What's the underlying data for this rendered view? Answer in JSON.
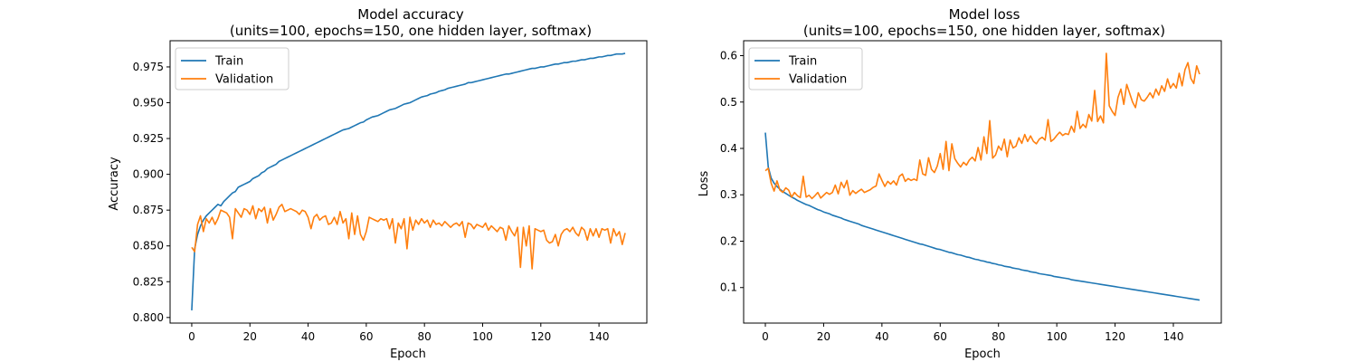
{
  "chart_data": [
    {
      "type": "line",
      "title": "Model accuracy",
      "subtitle": "(units=100, epochs=150, one hidden layer, softmax)",
      "xlabel": "Epoch",
      "ylabel": "Accuracy",
      "xlim": [
        -7.45,
        156.45
      ],
      "ylim": [
        0.7961,
        0.9933
      ],
      "xticks": [
        0,
        20,
        40,
        60,
        80,
        100,
        120,
        140
      ],
      "xtick_labels": [
        "0",
        "20",
        "40",
        "60",
        "80",
        "100",
        "120",
        "140"
      ],
      "yticks": [
        0.8,
        0.825,
        0.85,
        0.875,
        0.9,
        0.925,
        0.95,
        0.975
      ],
      "ytick_labels": [
        "0.800",
        "0.825",
        "0.850",
        "0.875",
        "0.900",
        "0.925",
        "0.950",
        "0.975"
      ],
      "legend": "top-left",
      "grid": false,
      "x": {
        "start": 0,
        "step": 1,
        "count": 150
      },
      "series": [
        {
          "name": "Train",
          "color": "#1f77b4",
          "values": [
            0.805,
            0.848,
            0.858,
            0.864,
            0.868,
            0.871,
            0.873,
            0.875,
            0.877,
            0.879,
            0.878,
            0.881,
            0.883,
            0.885,
            0.887,
            0.888,
            0.891,
            0.892,
            0.893,
            0.894,
            0.895,
            0.897,
            0.898,
            0.899,
            0.901,
            0.902,
            0.904,
            0.905,
            0.906,
            0.907,
            0.909,
            0.91,
            0.911,
            0.912,
            0.913,
            0.914,
            0.915,
            0.916,
            0.917,
            0.918,
            0.919,
            0.92,
            0.921,
            0.922,
            0.923,
            0.924,
            0.925,
            0.926,
            0.927,
            0.928,
            0.929,
            0.93,
            0.931,
            0.9315,
            0.932,
            0.933,
            0.934,
            0.935,
            0.936,
            0.9365,
            0.938,
            0.939,
            0.94,
            0.9405,
            0.941,
            0.942,
            0.943,
            0.944,
            0.945,
            0.9455,
            0.946,
            0.947,
            0.948,
            0.949,
            0.9495,
            0.95,
            0.951,
            0.952,
            0.953,
            0.954,
            0.9545,
            0.955,
            0.956,
            0.9565,
            0.957,
            0.958,
            0.9585,
            0.959,
            0.96,
            0.9605,
            0.961,
            0.9615,
            0.962,
            0.9625,
            0.963,
            0.964,
            0.964,
            0.9645,
            0.965,
            0.9655,
            0.966,
            0.9665,
            0.967,
            0.9675,
            0.968,
            0.9685,
            0.969,
            0.9695,
            0.97,
            0.97,
            0.9705,
            0.971,
            0.9715,
            0.972,
            0.9725,
            0.973,
            0.9735,
            0.974,
            0.974,
            0.9745,
            0.975,
            0.975,
            0.9755,
            0.976,
            0.9765,
            0.977,
            0.977,
            0.9775,
            0.978,
            0.978,
            0.9785,
            0.979,
            0.979,
            0.9795,
            0.98,
            0.98,
            0.9805,
            0.981,
            0.981,
            0.9815,
            0.982,
            0.982,
            0.9825,
            0.983,
            0.983,
            0.9835,
            0.984,
            0.984,
            0.984,
            0.9845
          ]
        },
        {
          "name": "Validation",
          "color": "#ff7f0e",
          "values": [
            0.849,
            0.846,
            0.865,
            0.871,
            0.86,
            0.869,
            0.866,
            0.87,
            0.865,
            0.869,
            0.875,
            0.874,
            0.873,
            0.87,
            0.855,
            0.876,
            0.873,
            0.87,
            0.876,
            0.875,
            0.872,
            0.878,
            0.869,
            0.876,
            0.874,
            0.877,
            0.866,
            0.876,
            0.868,
            0.872,
            0.877,
            0.879,
            0.874,
            0.875,
            0.876,
            0.875,
            0.874,
            0.872,
            0.875,
            0.874,
            0.87,
            0.862,
            0.87,
            0.872,
            0.868,
            0.87,
            0.871,
            0.865,
            0.866,
            0.87,
            0.865,
            0.874,
            0.866,
            0.869,
            0.855,
            0.873,
            0.858,
            0.871,
            0.858,
            0.854,
            0.86,
            0.87,
            0.869,
            0.868,
            0.867,
            0.869,
            0.868,
            0.869,
            0.862,
            0.869,
            0.852,
            0.866,
            0.862,
            0.869,
            0.848,
            0.87,
            0.861,
            0.868,
            0.865,
            0.869,
            0.866,
            0.868,
            0.863,
            0.868,
            0.865,
            0.866,
            0.864,
            0.867,
            0.865,
            0.863,
            0.865,
            0.866,
            0.864,
            0.867,
            0.856,
            0.866,
            0.865,
            0.862,
            0.865,
            0.864,
            0.863,
            0.866,
            0.861,
            0.864,
            0.862,
            0.86,
            0.863,
            0.862,
            0.854,
            0.864,
            0.86,
            0.857,
            0.863,
            0.835,
            0.863,
            0.85,
            0.864,
            0.834,
            0.862,
            0.861,
            0.86,
            0.861,
            0.854,
            0.852,
            0.853,
            0.858,
            0.85,
            0.858,
            0.861,
            0.862,
            0.86,
            0.863,
            0.859,
            0.857,
            0.863,
            0.861,
            0.854,
            0.862,
            0.857,
            0.862,
            0.856,
            0.862,
            0.861,
            0.862,
            0.852,
            0.862,
            0.857,
            0.86,
            0.851,
            0.859
          ]
        }
      ]
    },
    {
      "type": "line",
      "title": "Model loss",
      "subtitle": "(units=100, epochs=150, one hidden layer, softmax)",
      "xlabel": "Epoch",
      "ylabel": "Loss",
      "xlim": [
        -7.45,
        156.45
      ],
      "ylim": [
        0.0234,
        0.6322
      ],
      "xticks": [
        0,
        20,
        40,
        60,
        80,
        100,
        120,
        140
      ],
      "xtick_labels": [
        "0",
        "20",
        "40",
        "60",
        "80",
        "100",
        "120",
        "140"
      ],
      "yticks": [
        0.1,
        0.2,
        0.3,
        0.4,
        0.5,
        0.6
      ],
      "ytick_labels": [
        "0.1",
        "0.2",
        "0.3",
        "0.4",
        "0.5",
        "0.6"
      ],
      "legend": "top-left",
      "grid": false,
      "x": {
        "start": 0,
        "step": 1,
        "count": 150
      },
      "series": [
        {
          "name": "Train",
          "color": "#1f77b4",
          "values": [
            0.434,
            0.36,
            0.336,
            0.325,
            0.318,
            0.312,
            0.307,
            0.303,
            0.299,
            0.295,
            0.292,
            0.288,
            0.285,
            0.282,
            0.279,
            0.277,
            0.274,
            0.271,
            0.268,
            0.266,
            0.263,
            0.261,
            0.259,
            0.256,
            0.254,
            0.252,
            0.25,
            0.247,
            0.245,
            0.243,
            0.241,
            0.239,
            0.237,
            0.234,
            0.232,
            0.23,
            0.228,
            0.226,
            0.224,
            0.222,
            0.22,
            0.218,
            0.216,
            0.214,
            0.212,
            0.21,
            0.208,
            0.206,
            0.204,
            0.202,
            0.2,
            0.198,
            0.196,
            0.194,
            0.193,
            0.191,
            0.189,
            0.187,
            0.185,
            0.183,
            0.182,
            0.18,
            0.178,
            0.176,
            0.175,
            0.173,
            0.171,
            0.17,
            0.168,
            0.166,
            0.165,
            0.163,
            0.161,
            0.16,
            0.158,
            0.157,
            0.155,
            0.154,
            0.152,
            0.151,
            0.149,
            0.148,
            0.146,
            0.145,
            0.144,
            0.142,
            0.141,
            0.14,
            0.138,
            0.137,
            0.136,
            0.134,
            0.133,
            0.132,
            0.13,
            0.129,
            0.128,
            0.127,
            0.126,
            0.124,
            0.123,
            0.122,
            0.121,
            0.12,
            0.119,
            0.117,
            0.116,
            0.115,
            0.114,
            0.113,
            0.112,
            0.111,
            0.11,
            0.109,
            0.108,
            0.107,
            0.106,
            0.105,
            0.104,
            0.103,
            0.102,
            0.101,
            0.1,
            0.099,
            0.098,
            0.097,
            0.096,
            0.095,
            0.094,
            0.093,
            0.092,
            0.091,
            0.09,
            0.089,
            0.088,
            0.087,
            0.086,
            0.085,
            0.084,
            0.083,
            0.082,
            0.081,
            0.08,
            0.079,
            0.078,
            0.077,
            0.076,
            0.075,
            0.074,
            0.073
          ]
        },
        {
          "name": "Validation",
          "color": "#ff7f0e",
          "values": [
            0.352,
            0.357,
            0.325,
            0.308,
            0.33,
            0.31,
            0.305,
            0.315,
            0.31,
            0.295,
            0.305,
            0.298,
            0.294,
            0.34,
            0.295,
            0.299,
            0.292,
            0.298,
            0.305,
            0.293,
            0.299,
            0.305,
            0.301,
            0.305,
            0.321,
            0.302,
            0.327,
            0.315,
            0.331,
            0.299,
            0.309,
            0.303,
            0.308,
            0.312,
            0.305,
            0.308,
            0.311,
            0.316,
            0.319,
            0.345,
            0.331,
            0.318,
            0.329,
            0.323,
            0.33,
            0.321,
            0.34,
            0.345,
            0.329,
            0.335,
            0.331,
            0.334,
            0.331,
            0.375,
            0.345,
            0.342,
            0.38,
            0.355,
            0.348,
            0.362,
            0.389,
            0.355,
            0.415,
            0.352,
            0.41,
            0.378,
            0.368,
            0.36,
            0.37,
            0.364,
            0.375,
            0.381,
            0.373,
            0.402,
            0.375,
            0.425,
            0.389,
            0.46,
            0.379,
            0.386,
            0.405,
            0.396,
            0.42,
            0.382,
            0.418,
            0.401,
            0.405,
            0.423,
            0.411,
            0.43,
            0.415,
            0.427,
            0.415,
            0.41,
            0.42,
            0.424,
            0.418,
            0.462,
            0.415,
            0.42,
            0.428,
            0.435,
            0.428,
            0.432,
            0.43,
            0.448,
            0.435,
            0.48,
            0.443,
            0.452,
            0.445,
            0.473,
            0.459,
            0.525,
            0.458,
            0.47,
            0.455,
            0.605,
            0.492,
            0.48,
            0.471,
            0.51,
            0.528,
            0.495,
            0.538,
            0.519,
            0.5,
            0.488,
            0.52,
            0.505,
            0.502,
            0.51,
            0.52,
            0.509,
            0.528,
            0.515,
            0.535,
            0.523,
            0.55,
            0.53,
            0.54,
            0.53,
            0.562,
            0.535,
            0.57,
            0.585,
            0.551,
            0.54,
            0.578,
            0.56
          ]
        }
      ]
    }
  ]
}
